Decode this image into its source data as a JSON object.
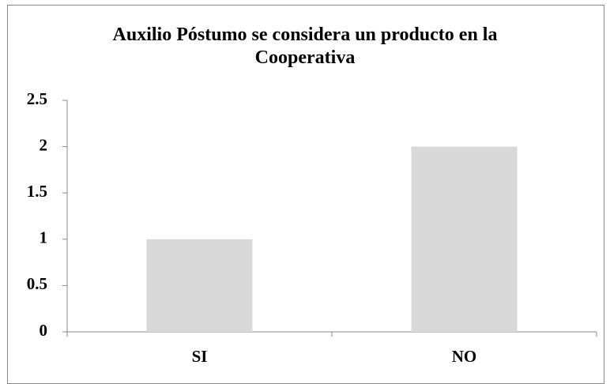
{
  "chart_data": {
    "type": "bar",
    "title": "Auxilio Póstumo se considera un producto en la Cooperativa",
    "categories": [
      "SI",
      "NO"
    ],
    "values": [
      1,
      2
    ],
    "color": "#d9d9d9",
    "ylim": [
      0,
      2.5
    ],
    "yticks": [
      0,
      0.5,
      1,
      1.5,
      2,
      2.5
    ],
    "grid": false
  }
}
